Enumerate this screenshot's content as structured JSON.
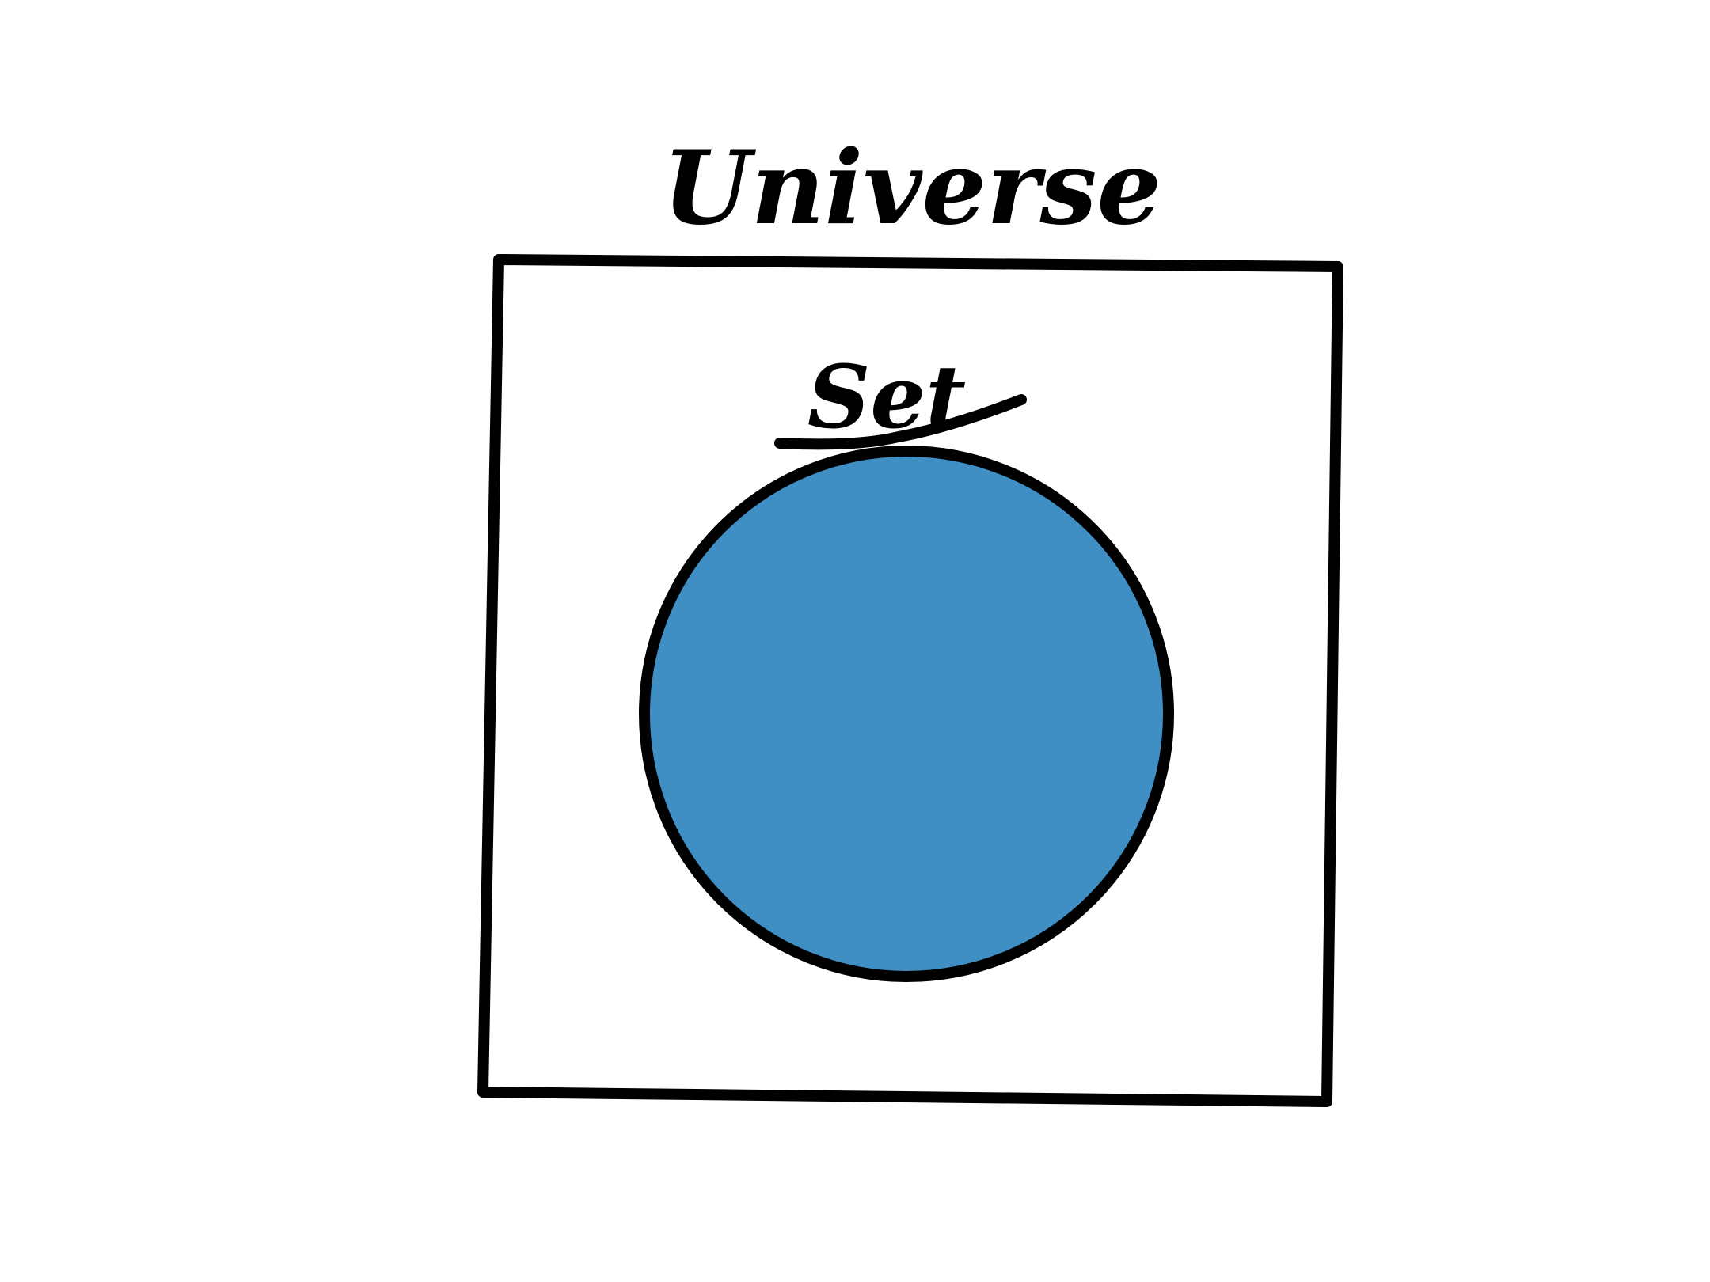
{
  "diagram": {
    "universe": {
      "label": "Universe"
    },
    "set": {
      "label": "Set"
    }
  },
  "colors": {
    "background": "#ffffff",
    "stroke": "#000000",
    "set_fill": "#3f8fc5"
  }
}
